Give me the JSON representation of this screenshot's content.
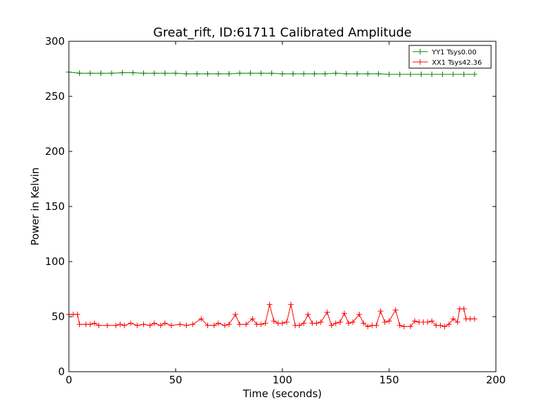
{
  "chart_data": {
    "type": "line",
    "title": "Great_rift, ID:61711 Calibrated Amplitude",
    "xlabel": "Time (seconds)",
    "ylabel": "Power in Kelvin",
    "xlim": [
      0,
      200
    ],
    "ylim": [
      0,
      300
    ],
    "xticks": [
      0,
      50,
      100,
      150,
      200
    ],
    "yticks": [
      0,
      50,
      100,
      150,
      200,
      250,
      300
    ],
    "grid": false,
    "legend_position": "top-right",
    "series": [
      {
        "name": "YY1 Tsys0.00",
        "color": "#008000",
        "marker": "+",
        "x": [
          0,
          5,
          10,
          15,
          20,
          25,
          30,
          35,
          40,
          45,
          50,
          55,
          60,
          65,
          70,
          75,
          80,
          85,
          90,
          95,
          100,
          105,
          110,
          115,
          120,
          125,
          130,
          135,
          140,
          145,
          150,
          155,
          160,
          165,
          170,
          175,
          180,
          185,
          190
        ],
        "y": [
          272,
          271,
          271,
          271,
          271,
          271.5,
          271.5,
          271,
          271,
          271,
          271,
          270.5,
          270.5,
          270.5,
          270.5,
          270.5,
          271,
          271,
          271,
          271,
          270.5,
          270.5,
          270.5,
          270.5,
          270.5,
          271,
          270.5,
          270.5,
          270.5,
          270.5,
          270,
          270,
          270,
          270,
          270,
          270,
          270,
          270,
          270
        ]
      },
      {
        "name": "XX1 Tsys42.36",
        "color": "#ff0000",
        "marker": "+",
        "x": [
          0,
          2,
          4,
          5,
          8,
          10,
          12,
          14,
          18,
          22,
          24,
          26,
          29,
          32,
          35,
          38,
          40,
          43,
          45,
          48,
          52,
          55,
          58,
          62,
          65,
          68,
          70,
          73,
          75,
          78,
          80,
          83,
          86,
          88,
          90,
          92,
          94,
          96,
          98,
          100,
          102,
          104,
          106,
          108,
          110,
          112,
          114,
          116,
          118,
          121,
          123,
          125,
          127,
          129,
          131,
          133,
          136,
          138,
          140,
          142,
          144,
          146,
          148,
          150,
          153,
          155,
          157,
          160,
          162,
          164,
          166,
          168,
          170,
          172,
          174,
          176,
          178,
          180,
          182,
          183,
          185,
          186,
          188,
          190
        ],
        "y": [
          52,
          52,
          52,
          43,
          43,
          43,
          44,
          42,
          42,
          42,
          43,
          42,
          44,
          42,
          43,
          42,
          44,
          42,
          44,
          42,
          43,
          42,
          43,
          48,
          42,
          42,
          44,
          42,
          43,
          52,
          43,
          43,
          48,
          43,
          43,
          44,
          61,
          46,
          44,
          44,
          45,
          61,
          42,
          42,
          44,
          52,
          44,
          44,
          45,
          54,
          42,
          44,
          45,
          53,
          44,
          45,
          52,
          44,
          41,
          42,
          42,
          55,
          45,
          46,
          56,
          42,
          41,
          41,
          46,
          45,
          45,
          45,
          46,
          42,
          42,
          41,
          43,
          48,
          45,
          57,
          57,
          48,
          48,
          48
        ]
      }
    ]
  }
}
